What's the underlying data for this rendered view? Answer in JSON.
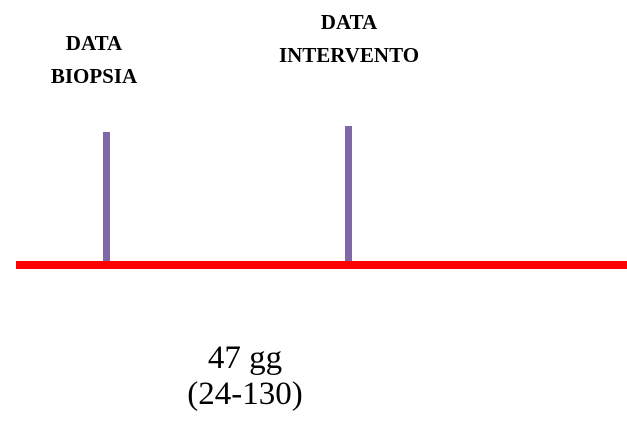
{
  "labels": {
    "biopsy_line1": "DATA",
    "biopsy_line2": "BIOPSIA",
    "intervention_line1": "DATA",
    "intervention_line2": "INTERVENTO"
  },
  "duration": {
    "value_text": "47  gg",
    "range_text": "(24-130)"
  },
  "colors": {
    "timeline": "#ff0000",
    "marker": "#7f68a8",
    "text": "#000000",
    "background": "#ffffff"
  }
}
